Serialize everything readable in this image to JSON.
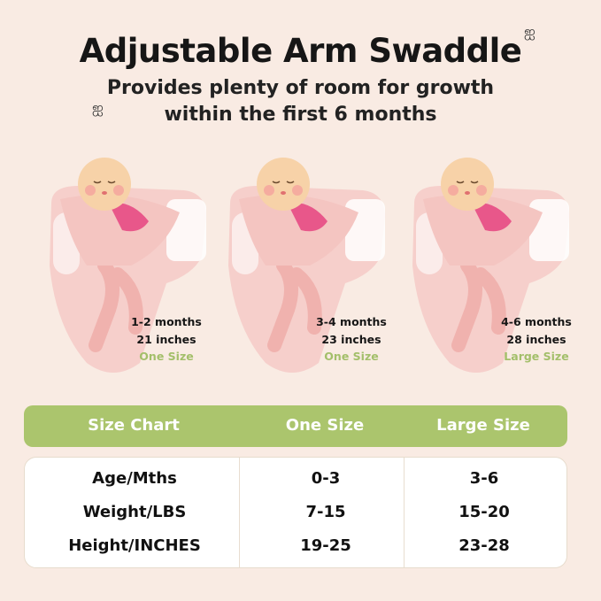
{
  "title": "Adjustable Arm Swaddle",
  "subtitle_lines": [
    "Provides plenty of room for growth",
    "within the first 6 months"
  ],
  "colors": {
    "background": "#f9ebe3",
    "accent_green": "#abc56d",
    "swaddle_pink": "#f6cfcb",
    "baby_suit": "#e8578a"
  },
  "swaddles": [
    {
      "age": "1-2 months",
      "length": "21 inches",
      "size": "One Size"
    },
    {
      "age": "3-4 months",
      "length": "23 inches",
      "size": "One Size"
    },
    {
      "age": "4-6 months",
      "length": "28 inches",
      "size": "Large Size"
    }
  ],
  "size_chart": {
    "headers": [
      "Size Chart",
      "One Size",
      "Large Size"
    ],
    "rows": [
      [
        "Age/Mths",
        "0-3",
        "3-6"
      ],
      [
        "Weight/LBS",
        "7-15",
        "15-20"
      ],
      [
        "Height/INCHES",
        "19-25",
        "23-28"
      ]
    ]
  }
}
